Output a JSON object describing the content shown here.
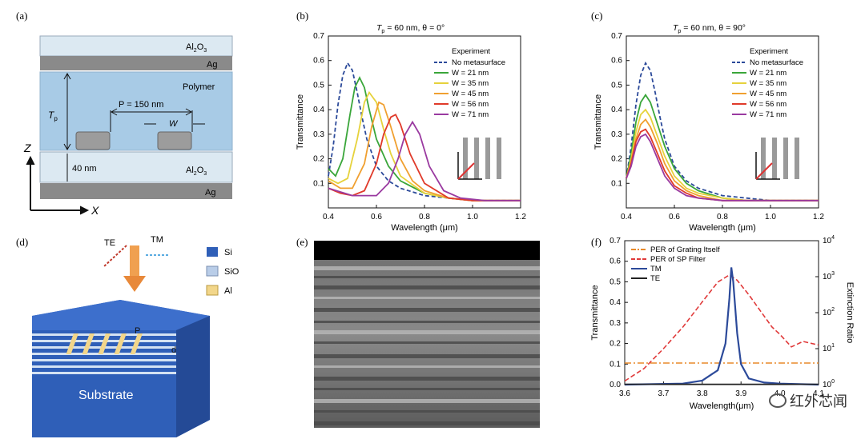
{
  "labels": {
    "a": "(a)",
    "b": "(b)",
    "c": "(c)",
    "d": "(d)",
    "e": "(e)",
    "f": "(f)"
  },
  "panel_a": {
    "layers": [
      "Al2O3",
      "Ag",
      "Polymer",
      "Al2O3",
      "Ag"
    ],
    "al2o3_top": "Al",
    "al2o3_sub": "2",
    "al2o3_o": "O",
    "al2o3_sub2": "3",
    "ag": "Ag",
    "polymer": "Polymer",
    "tp": "T",
    "tp_sub": "p",
    "period": "P = 150 nm",
    "width": "W",
    "thickness": "40 nm",
    "axis_z": "Z",
    "axis_x": "X",
    "colors": {
      "al2o3": "#dce9f2",
      "ag": "#8a8a8a",
      "polymer": "#a8cbe6",
      "metal": "#9c9c9c"
    }
  },
  "panel_d": {
    "te": "TE",
    "tm": "TM",
    "legend": [
      {
        "label": "Si",
        "color": "#2f5fb8"
      },
      {
        "label": "SiO",
        "color": "#b9cde8"
      },
      {
        "label": "Al",
        "color": "#f2d68a"
      }
    ],
    "substrate": "Substrate",
    "p": "P",
    "d": "d"
  },
  "panel_e": {
    "description_color": "#7a7a7a"
  },
  "watermark": {
    "text": "红外芯闻",
    "icon": "wechat-icon"
  },
  "chart_data": [
    {
      "id": "b",
      "type": "line",
      "title": "T",
      "title_sub": "p",
      "title_rest": " = 60 nm, θ = 0°",
      "xlabel": "Wavelength (μm)",
      "ylabel": "Transmittance",
      "xlim": [
        0.4,
        1.2
      ],
      "ylim": [
        0.0,
        0.7
      ],
      "xticks": [
        "0.4",
        "0.6",
        "0.8",
        "1.0",
        "1.2"
      ],
      "yticks": [
        "0.1",
        "0.2",
        "0.3",
        "0.4",
        "0.5",
        "0.6",
        "0.7"
      ],
      "legend_title": "Experiment",
      "legend_position": "top-right",
      "series": [
        {
          "name": "No metasurface",
          "color": "#2c4a9a",
          "dashed": true,
          "x": [
            0.4,
            0.42,
            0.44,
            0.46,
            0.48,
            0.5,
            0.52,
            0.54,
            0.56,
            0.6,
            0.65,
            0.7,
            0.8,
            0.9,
            1.0,
            1.1,
            1.2
          ],
          "y": [
            0.13,
            0.25,
            0.42,
            0.54,
            0.59,
            0.56,
            0.47,
            0.37,
            0.28,
            0.17,
            0.11,
            0.08,
            0.05,
            0.04,
            0.03,
            0.03,
            0.03
          ]
        },
        {
          "name": "W = 21 nm",
          "color": "#3aa63a",
          "x": [
            0.4,
            0.43,
            0.46,
            0.49,
            0.51,
            0.53,
            0.55,
            0.57,
            0.6,
            0.65,
            0.7,
            0.8,
            0.9,
            1.0,
            1.2
          ],
          "y": [
            0.16,
            0.13,
            0.2,
            0.38,
            0.49,
            0.53,
            0.49,
            0.4,
            0.28,
            0.17,
            0.11,
            0.06,
            0.04,
            0.03,
            0.03
          ]
        },
        {
          "name": "W = 35 nm",
          "color": "#e6d23c",
          "x": [
            0.4,
            0.44,
            0.48,
            0.52,
            0.55,
            0.57,
            0.6,
            0.63,
            0.66,
            0.7,
            0.8,
            0.9,
            1.0,
            1.2
          ],
          "y": [
            0.12,
            0.1,
            0.12,
            0.28,
            0.43,
            0.47,
            0.43,
            0.32,
            0.22,
            0.13,
            0.06,
            0.04,
            0.03,
            0.03
          ]
        },
        {
          "name": "W = 45 nm",
          "color": "#f0a030",
          "x": [
            0.4,
            0.45,
            0.5,
            0.55,
            0.58,
            0.61,
            0.63,
            0.66,
            0.7,
            0.75,
            0.8,
            0.9,
            1.0,
            1.2
          ],
          "y": [
            0.11,
            0.08,
            0.08,
            0.18,
            0.33,
            0.43,
            0.42,
            0.33,
            0.2,
            0.11,
            0.07,
            0.04,
            0.03,
            0.03
          ]
        },
        {
          "name": "W = 56 nm",
          "color": "#e03a2a",
          "x": [
            0.4,
            0.45,
            0.5,
            0.55,
            0.6,
            0.63,
            0.66,
            0.68,
            0.7,
            0.74,
            0.8,
            0.9,
            1.0,
            1.2
          ],
          "y": [
            0.08,
            0.06,
            0.05,
            0.07,
            0.18,
            0.3,
            0.37,
            0.38,
            0.34,
            0.22,
            0.1,
            0.04,
            0.03,
            0.03
          ]
        },
        {
          "name": "W = 71 nm",
          "color": "#9a3aa0",
          "x": [
            0.4,
            0.5,
            0.6,
            0.65,
            0.69,
            0.72,
            0.75,
            0.78,
            0.82,
            0.88,
            0.95,
            1.05,
            1.2
          ],
          "y": [
            0.08,
            0.05,
            0.05,
            0.1,
            0.2,
            0.3,
            0.35,
            0.3,
            0.17,
            0.07,
            0.04,
            0.03,
            0.03
          ]
        }
      ]
    },
    {
      "id": "c",
      "type": "line",
      "title": "T",
      "title_sub": "p",
      "title_rest": " = 60 nm, θ = 90°",
      "xlabel": "Wavelength (μm)",
      "ylabel": "Transmittance",
      "xlim": [
        0.4,
        1.2
      ],
      "ylim": [
        0.0,
        0.7
      ],
      "xticks": [
        "0.4",
        "0.6",
        "0.8",
        "1.0",
        "1.2"
      ],
      "yticks": [
        "0.1",
        "0.2",
        "0.3",
        "0.4",
        "0.5",
        "0.6",
        "0.7"
      ],
      "legend_title": "Experiment",
      "legend_position": "top-right",
      "series": [
        {
          "name": "No metasurface",
          "color": "#2c4a9a",
          "dashed": true,
          "x": [
            0.4,
            0.42,
            0.44,
            0.46,
            0.48,
            0.5,
            0.52,
            0.54,
            0.56,
            0.6,
            0.65,
            0.7,
            0.8,
            0.9,
            1.0,
            1.1,
            1.2
          ],
          "y": [
            0.12,
            0.25,
            0.42,
            0.54,
            0.59,
            0.56,
            0.47,
            0.37,
            0.28,
            0.17,
            0.11,
            0.08,
            0.05,
            0.04,
            0.03,
            0.03,
            0.03
          ]
        },
        {
          "name": "W = 21 nm",
          "color": "#3aa63a",
          "x": [
            0.4,
            0.42,
            0.44,
            0.46,
            0.48,
            0.5,
            0.53,
            0.56,
            0.6,
            0.65,
            0.7,
            0.8,
            0.9,
            1.0,
            1.2
          ],
          "y": [
            0.12,
            0.22,
            0.35,
            0.43,
            0.46,
            0.43,
            0.34,
            0.25,
            0.16,
            0.1,
            0.07,
            0.04,
            0.03,
            0.03,
            0.03
          ]
        },
        {
          "name": "W = 35 nm",
          "color": "#e6d23c",
          "x": [
            0.4,
            0.42,
            0.44,
            0.46,
            0.48,
            0.5,
            0.53,
            0.56,
            0.6,
            0.65,
            0.7,
            0.8,
            0.9,
            1.0,
            1.2
          ],
          "y": [
            0.12,
            0.2,
            0.31,
            0.38,
            0.4,
            0.37,
            0.29,
            0.21,
            0.13,
            0.08,
            0.06,
            0.04,
            0.03,
            0.03,
            0.03
          ]
        },
        {
          "name": "W = 45 nm",
          "color": "#f0a030",
          "x": [
            0.4,
            0.42,
            0.44,
            0.46,
            0.48,
            0.5,
            0.53,
            0.56,
            0.6,
            0.65,
            0.7,
            0.8,
            0.9,
            1.0,
            1.2
          ],
          "y": [
            0.12,
            0.19,
            0.28,
            0.34,
            0.36,
            0.33,
            0.26,
            0.18,
            0.11,
            0.07,
            0.05,
            0.03,
            0.03,
            0.03,
            0.03
          ]
        },
        {
          "name": "W = 56 nm",
          "color": "#e03a2a",
          "x": [
            0.4,
            0.42,
            0.44,
            0.46,
            0.48,
            0.5,
            0.53,
            0.56,
            0.6,
            0.65,
            0.7,
            0.8,
            0.9,
            1.0,
            1.2
          ],
          "y": [
            0.12,
            0.18,
            0.27,
            0.31,
            0.32,
            0.29,
            0.22,
            0.15,
            0.09,
            0.06,
            0.04,
            0.03,
            0.03,
            0.03,
            0.03
          ]
        },
        {
          "name": "W = 71 nm",
          "color": "#9a3aa0",
          "x": [
            0.4,
            0.42,
            0.44,
            0.46,
            0.48,
            0.5,
            0.53,
            0.56,
            0.6,
            0.65,
            0.7,
            0.8,
            0.9,
            1.0,
            1.2
          ],
          "y": [
            0.12,
            0.17,
            0.25,
            0.29,
            0.3,
            0.27,
            0.2,
            0.13,
            0.08,
            0.05,
            0.04,
            0.03,
            0.03,
            0.03,
            0.03
          ]
        }
      ]
    },
    {
      "id": "f",
      "type": "line",
      "xlabel": "Wavelength(μm)",
      "ylabel": "Transmittance",
      "ylabel2": "Extinction Ratio",
      "xlim": [
        3.6,
        4.1
      ],
      "ylim": [
        0.0,
        0.7
      ],
      "y2_log_range": [
        0,
        4
      ],
      "xticks": [
        "3.6",
        "3.7",
        "3.8",
        "3.9",
        "4.0",
        "4.1"
      ],
      "yticks": [
        "0.0",
        "0.1",
        "0.2",
        "0.3",
        "0.4",
        "0.5",
        "0.6",
        "0.7"
      ],
      "y2ticks": [
        {
          "base": "10",
          "exp": "0"
        },
        {
          "base": "10",
          "exp": "1"
        },
        {
          "base": "10",
          "exp": "2"
        },
        {
          "base": "10",
          "exp": "3"
        },
        {
          "base": "10",
          "exp": "4"
        }
      ],
      "legend_position": "top-left",
      "series": [
        {
          "name": "PER of Grating Itself",
          "color": "#e88a2a",
          "dashdot": true,
          "axis": "right",
          "x": [
            3.6,
            4.1
          ],
          "y": [
            0.6,
            0.6
          ]
        },
        {
          "name": "PER of SP Filter",
          "color": "#e03a3a",
          "dashed": true,
          "axis": "right",
          "x": [
            3.6,
            3.65,
            3.7,
            3.75,
            3.8,
            3.84,
            3.87,
            3.89,
            3.92,
            3.95,
            3.98,
            4.0,
            4.03,
            4.06,
            4.1
          ],
          "y": [
            0.1,
            0.45,
            1.0,
            1.6,
            2.3,
            2.85,
            3.05,
            2.9,
            2.5,
            2.05,
            1.6,
            1.4,
            1.05,
            1.2,
            1.1
          ]
        },
        {
          "name": "TM",
          "color": "#2c4a9a",
          "axis": "left",
          "x": [
            3.6,
            3.75,
            3.8,
            3.84,
            3.86,
            3.87,
            3.875,
            3.88,
            3.89,
            3.9,
            3.92,
            3.96,
            4.0,
            4.1
          ],
          "y": [
            0.0,
            0.005,
            0.02,
            0.07,
            0.2,
            0.42,
            0.57,
            0.5,
            0.25,
            0.1,
            0.03,
            0.01,
            0.005,
            0.0
          ]
        },
        {
          "name": "TE",
          "color": "#222222",
          "axis": "left",
          "x": [
            3.6,
            4.1
          ],
          "y": [
            0.002,
            0.002
          ]
        }
      ]
    }
  ]
}
